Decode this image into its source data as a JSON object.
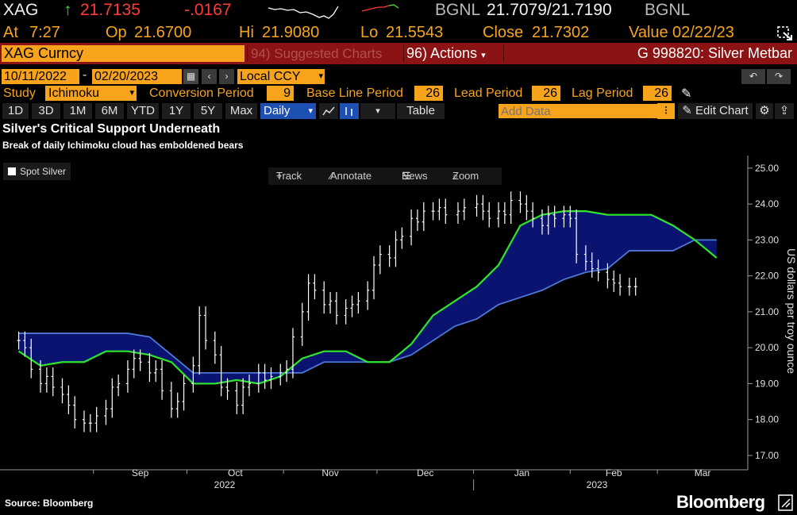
{
  "quote": {
    "symbol": "XAG",
    "arrow": "↑",
    "last": "21.7135",
    "change": "-.0167",
    "bid_source": "BGNL",
    "bid_ask": "21.7079/21.7190",
    "ask_source": "BGNL",
    "at_label": "At",
    "time": "7:27",
    "open_label": "Op",
    "open": "21.6700",
    "high_label": "Hi",
    "high": "21.9080",
    "low_label": "Lo",
    "low": "21.5543",
    "close_label": "Close",
    "close": "21.7302",
    "value_label": "Value",
    "value_date": "02/22/23"
  },
  "topbar": {
    "security": "XAG Curncy",
    "suggested": "94) Suggested Charts",
    "actions": "96) Actions",
    "description": "G 998820: Silver Metbar"
  },
  "range": {
    "start": "10/11/2022",
    "end": "02/20/2023",
    "currency": "Local CCY"
  },
  "study": {
    "label": "Study",
    "name": "Ichimoku",
    "conversion_label": "Conversion Period",
    "conversion": "9",
    "base_label": "Base Line Period",
    "base": "26",
    "lead_label": "Lead Period",
    "lead": "26",
    "lag_label": "Lag Period",
    "lag": "26"
  },
  "tabs": [
    "1D",
    "3D",
    "1M",
    "6M",
    "YTD",
    "1Y",
    "5Y",
    "Max"
  ],
  "frequency": "Daily",
  "table_label": "Table",
  "add_data_placeholder": "Add Data",
  "edit_chart_label": "Edit Chart",
  "toolbar": {
    "track": "Track",
    "annotate": "Annotate",
    "news": "News",
    "zoom": "Zoom"
  },
  "source": "Source: Bloomberg",
  "brand": "Bloomberg",
  "colors": {
    "price": "#ffffff",
    "cloud_fill": "#0a1470",
    "span_a": "#2ee62e",
    "span_b": "#4d79d6",
    "accent": "#f7a31c",
    "header_bar": "#8b1313"
  },
  "chart_data": {
    "type": "line",
    "title": "Silver's Critical Support Underneath",
    "subtitle": "Break of daily Ichimoku cloud has emboldened bears",
    "ylabel": "US dollars per troy ounce",
    "ylim": [
      16.7,
      25.2
    ],
    "yticks": [
      "25.00",
      "24.00",
      "23.00",
      "22.00",
      "21.00",
      "20.00",
      "19.00",
      "18.00",
      "17.00"
    ],
    "xticks": [
      "Sep",
      "Oct",
      "Nov",
      "Dec",
      "Jan",
      "Feb",
      "Mar"
    ],
    "xyears": [
      "2022",
      "2023"
    ],
    "legend": "Spot Silver",
    "grid": false,
    "price": {
      "name": "Spot Silver",
      "x": [
        "2022-08-08",
        "2022-08-10",
        "2022-08-12",
        "2022-08-15",
        "2022-08-17",
        "2022-08-19",
        "2022-08-22",
        "2022-08-24",
        "2022-08-26",
        "2022-08-29",
        "2022-08-31",
        "2022-09-02",
        "2022-09-05",
        "2022-09-07",
        "2022-09-09",
        "2022-09-12",
        "2022-09-14",
        "2022-09-16",
        "2022-09-19",
        "2022-09-21",
        "2022-09-23",
        "2022-09-26",
        "2022-09-28",
        "2022-09-30",
        "2022-10-03",
        "2022-10-05",
        "2022-10-07",
        "2022-10-10",
        "2022-10-12",
        "2022-10-14",
        "2022-10-17",
        "2022-10-19",
        "2022-10-21",
        "2022-10-24",
        "2022-10-26",
        "2022-10-28",
        "2022-10-31",
        "2022-11-02",
        "2022-11-04",
        "2022-11-07",
        "2022-11-09",
        "2022-11-11",
        "2022-11-14",
        "2022-11-16",
        "2022-11-18",
        "2022-11-21",
        "2022-11-23",
        "2022-11-25",
        "2022-11-28",
        "2022-11-30",
        "2022-12-02",
        "2022-12-05",
        "2022-12-07",
        "2022-12-09",
        "2022-12-12",
        "2022-12-14",
        "2022-12-16",
        "2022-12-19",
        "2022-12-21",
        "2022-12-23",
        "2022-12-27",
        "2022-12-29",
        "2023-01-02",
        "2023-01-04",
        "2023-01-06",
        "2023-01-09",
        "2023-01-11",
        "2023-01-13",
        "2023-01-16",
        "2023-01-18",
        "2023-01-20",
        "2023-01-23",
        "2023-01-25",
        "2023-01-27",
        "2023-01-30",
        "2023-02-01",
        "2023-02-03",
        "2023-02-06",
        "2023-02-08",
        "2023-02-10",
        "2023-02-13",
        "2023-02-15",
        "2023-02-17",
        "2023-02-20",
        "2023-02-22"
      ],
      "y": [
        20.2,
        20.0,
        19.4,
        19.0,
        19.2,
        18.9,
        18.7,
        18.4,
        18.0,
        17.9,
        17.9,
        18.1,
        18.3,
        18.9,
        19.0,
        19.4,
        19.7,
        19.6,
        19.3,
        19.4,
        18.8,
        18.3,
        18.5,
        19.0,
        19.5,
        20.9,
        20.2,
        19.8,
        18.9,
        18.8,
        18.4,
        18.9,
        19.0,
        19.3,
        19.1,
        19.2,
        19.3,
        19.4,
        20.3,
        21.0,
        21.8,
        21.6,
        21.2,
        21.3,
        20.9,
        21.1,
        21.2,
        21.3,
        21.6,
        22.3,
        22.6,
        22.5,
        23.0,
        23.1,
        23.6,
        23.5,
        23.8,
        23.8,
        23.9,
        23.7,
        23.8,
        23.9,
        24.0,
        23.8,
        23.6,
        23.8,
        23.7,
        24.1,
        24.0,
        23.8,
        23.6,
        23.4,
        23.7,
        23.6,
        23.7,
        23.6,
        22.6,
        22.4,
        22.2,
        22.1,
        21.9,
        21.8,
        21.7,
        21.7,
        21.7
      ]
    },
    "span_a": {
      "name": "Leading Span A",
      "x": [
        "2022-08-08",
        "2022-08-15",
        "2022-08-22",
        "2022-08-29",
        "2022-09-05",
        "2022-09-12",
        "2022-09-19",
        "2022-09-26",
        "2022-10-03",
        "2022-10-10",
        "2022-10-17",
        "2022-10-24",
        "2022-10-31",
        "2022-11-07",
        "2022-11-14",
        "2022-11-21",
        "2022-11-28",
        "2022-12-05",
        "2022-12-12",
        "2022-12-19",
        "2022-12-26",
        "2023-01-02",
        "2023-01-09",
        "2023-01-16",
        "2023-01-23",
        "2023-01-30",
        "2023-02-06",
        "2023-02-13",
        "2023-02-20",
        "2023-02-27",
        "2023-03-06",
        "2023-03-13",
        "2023-03-20"
      ],
      "y": [
        19.9,
        19.5,
        19.6,
        19.6,
        19.9,
        19.9,
        19.8,
        19.6,
        19.0,
        19.0,
        19.1,
        19.0,
        19.2,
        19.7,
        19.9,
        19.9,
        19.6,
        19.6,
        20.1,
        20.9,
        21.3,
        21.7,
        22.3,
        23.4,
        23.7,
        23.8,
        23.8,
        23.7,
        23.7,
        23.7,
        23.4,
        23.0,
        22.5
      ]
    },
    "span_b": {
      "name": "Leading Span B",
      "x": [
        "2022-08-08",
        "2022-08-15",
        "2022-08-22",
        "2022-08-29",
        "2022-09-05",
        "2022-09-12",
        "2022-09-19",
        "2022-09-26",
        "2022-10-03",
        "2022-10-10",
        "2022-10-17",
        "2022-10-24",
        "2022-10-31",
        "2022-11-07",
        "2022-11-14",
        "2022-11-21",
        "2022-11-28",
        "2022-12-05",
        "2022-12-12",
        "2022-12-19",
        "2022-12-26",
        "2023-01-02",
        "2023-01-09",
        "2023-01-16",
        "2023-01-23",
        "2023-01-30",
        "2023-02-06",
        "2023-02-13",
        "2023-02-20",
        "2023-02-27",
        "2023-03-06",
        "2023-03-13",
        "2023-03-20"
      ],
      "y": [
        20.4,
        20.4,
        20.4,
        20.4,
        20.4,
        20.4,
        20.3,
        19.8,
        19.3,
        19.3,
        19.3,
        19.3,
        19.3,
        19.3,
        19.6,
        19.6,
        19.6,
        19.6,
        19.8,
        20.2,
        20.6,
        20.8,
        21.2,
        21.4,
        21.6,
        21.9,
        22.1,
        22.2,
        22.7,
        22.7,
        22.7,
        23.0,
        23.0
      ]
    }
  }
}
